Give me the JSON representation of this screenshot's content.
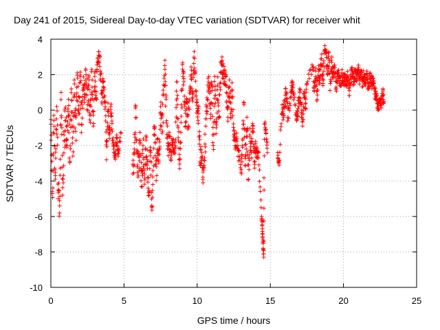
{
  "chart_data": {
    "type": "scatter",
    "title": "Day 241 of 2015, Sidereal Day-to-day VTEC variation (SDTVAR) for receiver whit",
    "xlabel": "GPS time / hours",
    "ylabel": "SDTVAR / TECUs",
    "xlim": [
      0,
      25
    ],
    "ylim": [
      -10,
      4
    ],
    "xticks": [
      0,
      5,
      10,
      15,
      20,
      25
    ],
    "yticks": [
      -10,
      -8,
      -6,
      -4,
      -2,
      0,
      2,
      4
    ],
    "grid": true,
    "marker": "+",
    "series_color": "#ff0000",
    "trace": [
      [
        0.0,
        -0.8
      ],
      [
        0.1,
        -4.6
      ],
      [
        0.2,
        -0.3
      ],
      [
        0.3,
        -3.9
      ],
      [
        0.4,
        0.2
      ],
      [
        0.5,
        -4.5
      ],
      [
        0.6,
        -5.4
      ],
      [
        0.7,
        1.0
      ],
      [
        0.8,
        -4.8
      ],
      [
        0.9,
        -1.4
      ],
      [
        1.0,
        -0.6
      ],
      [
        1.1,
        -2.0
      ],
      [
        1.2,
        0.6
      ],
      [
        1.3,
        -2.9
      ],
      [
        1.4,
        1.2
      ],
      [
        1.5,
        -2.6
      ],
      [
        1.6,
        1.7
      ],
      [
        1.7,
        -1.2
      ],
      [
        1.8,
        2.1
      ],
      [
        1.9,
        -0.2
      ],
      [
        2.0,
        1.9
      ],
      [
        2.1,
        -0.8
      ],
      [
        2.2,
        1.4
      ],
      [
        2.3,
        0.9
      ],
      [
        2.4,
        2.0
      ],
      [
        2.5,
        0.3
      ],
      [
        2.6,
        1.7
      ],
      [
        2.7,
        -0.7
      ],
      [
        2.8,
        2.3
      ],
      [
        2.9,
        -0.9
      ],
      [
        3.0,
        1.9
      ],
      [
        3.1,
        0.7
      ],
      [
        3.2,
        2.9
      ],
      [
        3.3,
        3.1
      ],
      [
        3.4,
        2.0
      ],
      [
        3.5,
        0.9
      ],
      [
        3.6,
        1.6
      ],
      [
        3.7,
        0.5
      ],
      [
        3.8,
        -2.8
      ],
      [
        3.9,
        0.4
      ],
      [
        4.0,
        -1.6
      ],
      [
        4.1,
        0.2
      ],
      [
        4.2,
        -1.2
      ],
      [
        4.3,
        -2.2
      ],
      [
        4.4,
        -2.6
      ],
      [
        4.5,
        -1.4
      ],
      [
        4.6,
        -2.6
      ],
      [
        4.8,
        -1.3
      ],
      [
        5.6,
        -3.6
      ],
      [
        5.7,
        -2.2
      ],
      [
        5.8,
        0.2
      ],
      [
        5.9,
        -3.2
      ],
      [
        6.0,
        -2.6
      ],
      [
        6.1,
        -1.9
      ],
      [
        6.2,
        -4.3
      ],
      [
        6.3,
        -2.0
      ],
      [
        6.4,
        -3.6
      ],
      [
        6.5,
        -1.7
      ],
      [
        6.6,
        -3.3
      ],
      [
        6.7,
        -4.8
      ],
      [
        6.8,
        -2.1
      ],
      [
        6.9,
        -5.5
      ],
      [
        7.0,
        -2.7
      ],
      [
        7.1,
        -1.0
      ],
      [
        7.2,
        -3.2
      ],
      [
        7.3,
        -1.6
      ],
      [
        7.4,
        -2.5
      ],
      [
        7.5,
        0.2
      ],
      [
        7.6,
        -1.3
      ],
      [
        7.7,
        0.9
      ],
      [
        7.8,
        2.3
      ],
      [
        7.9,
        -0.6
      ],
      [
        8.0,
        -2.0
      ],
      [
        8.1,
        -1.5
      ],
      [
        8.2,
        -2.7
      ],
      [
        8.3,
        -1.7
      ],
      [
        8.4,
        -2.4
      ],
      [
        8.5,
        -2.0
      ],
      [
        8.6,
        1.6
      ],
      [
        8.7,
        -1.0
      ],
      [
        8.8,
        -3.3
      ],
      [
        8.9,
        -0.7
      ],
      [
        9.0,
        2.3
      ],
      [
        9.1,
        1.6
      ],
      [
        9.2,
        -0.9
      ],
      [
        9.3,
        0.6
      ],
      [
        9.4,
        -1.0
      ],
      [
        9.5,
        1.1
      ],
      [
        9.6,
        2.0
      ],
      [
        9.7,
        0.5
      ],
      [
        9.8,
        3.3
      ],
      [
        9.9,
        1.1
      ],
      [
        10.0,
        0.1
      ],
      [
        10.1,
        -0.2
      ],
      [
        10.2,
        -3.1
      ],
      [
        10.3,
        -2.4
      ],
      [
        10.4,
        -4.1
      ],
      [
        10.5,
        -2.7
      ],
      [
        10.6,
        -0.5
      ],
      [
        10.7,
        0.6
      ],
      [
        10.8,
        1.9
      ],
      [
        10.9,
        0.1
      ],
      [
        11.0,
        1.4
      ],
      [
        11.1,
        -2.0
      ],
      [
        11.2,
        1.9
      ],
      [
        11.3,
        -1.0
      ],
      [
        11.4,
        1.4
      ],
      [
        11.5,
        -0.4
      ],
      [
        11.6,
        2.1
      ],
      [
        11.7,
        2.8
      ],
      [
        11.8,
        1.5
      ],
      [
        11.9,
        2.2
      ],
      [
        12.0,
        1.0
      ],
      [
        12.1,
        -0.4
      ],
      [
        12.2,
        1.7
      ],
      [
        12.3,
        -0.4
      ],
      [
        12.4,
        1.1
      ],
      [
        12.5,
        -1.4
      ],
      [
        12.6,
        -2.0
      ],
      [
        12.7,
        -1.6
      ],
      [
        12.8,
        -2.3
      ],
      [
        13.0,
        -3.5
      ],
      [
        13.1,
        -2.1
      ],
      [
        13.2,
        0.4
      ],
      [
        13.3,
        -3.1
      ],
      [
        13.4,
        -0.4
      ],
      [
        13.5,
        -3.9
      ],
      [
        13.6,
        -1.4
      ],
      [
        13.7,
        -2.4
      ],
      [
        13.8,
        -0.9
      ],
      [
        13.9,
        -2.9
      ],
      [
        14.0,
        -1.9
      ],
      [
        14.1,
        -2.7
      ],
      [
        14.2,
        -2.4
      ],
      [
        14.4,
        -6.0
      ],
      [
        14.45,
        -6.7
      ],
      [
        14.5,
        -7.5
      ],
      [
        14.55,
        -8.3
      ],
      [
        14.6,
        -0.8
      ],
      [
        14.7,
        -1.1
      ],
      [
        14.8,
        -2.4
      ],
      [
        15.5,
        -2.4
      ],
      [
        15.6,
        -3.1
      ],
      [
        15.8,
        0.3
      ],
      [
        15.9,
        -0.4
      ],
      [
        16.0,
        0.6
      ],
      [
        16.1,
        0.9
      ],
      [
        16.2,
        -0.4
      ],
      [
        16.4,
        1.0
      ],
      [
        16.5,
        1.3
      ],
      [
        16.6,
        0.9
      ],
      [
        16.8,
        -0.6
      ],
      [
        16.9,
        0.1
      ],
      [
        17.0,
        1.2
      ],
      [
        17.1,
        0.3
      ],
      [
        17.2,
        -0.9
      ],
      [
        17.3,
        0.9
      ],
      [
        17.4,
        0.1
      ],
      [
        17.5,
        1.5
      ],
      [
        17.9,
        2.4
      ],
      [
        18.0,
        1.1
      ],
      [
        18.1,
        2.2
      ],
      [
        18.2,
        0.6
      ],
      [
        18.3,
        2.5
      ],
      [
        18.4,
        1.8
      ],
      [
        18.5,
        2.9
      ],
      [
        18.6,
        1.5
      ],
      [
        18.7,
        3.2
      ],
      [
        18.8,
        3.4
      ],
      [
        18.9,
        2.0
      ],
      [
        19.0,
        2.9
      ],
      [
        19.1,
        1.5
      ],
      [
        19.2,
        2.7
      ],
      [
        19.3,
        1.8
      ],
      [
        19.4,
        2.4
      ],
      [
        19.5,
        1.3
      ],
      [
        19.6,
        2.2
      ],
      [
        19.7,
        1.9
      ],
      [
        19.8,
        1.4
      ],
      [
        19.9,
        2.1
      ],
      [
        20.0,
        1.6
      ],
      [
        20.1,
        2.0
      ],
      [
        20.2,
        1.4
      ],
      [
        20.3,
        1.9
      ],
      [
        20.4,
        1.1
      ],
      [
        20.5,
        1.8
      ],
      [
        20.6,
        2.1
      ],
      [
        20.7,
        1.6
      ],
      [
        20.8,
        2.2
      ],
      [
        20.9,
        1.8
      ],
      [
        21.0,
        2.3
      ],
      [
        21.1,
        1.8
      ],
      [
        21.2,
        2.2
      ],
      [
        21.3,
        1.6
      ],
      [
        21.4,
        2.0
      ],
      [
        21.5,
        1.4
      ],
      [
        21.6,
        2.2
      ],
      [
        21.7,
        1.2
      ],
      [
        21.8,
        1.9
      ],
      [
        21.9,
        1.5
      ],
      [
        22.0,
        1.8
      ],
      [
        22.1,
        1.2
      ],
      [
        22.2,
        0.9
      ],
      [
        22.3,
        0.4
      ],
      [
        22.4,
        0.1
      ],
      [
        22.5,
        0.6
      ],
      [
        22.6,
        0.3
      ],
      [
        22.7,
        1.2
      ],
      [
        22.75,
        0.5
      ]
    ],
    "spread": [
      2.2,
      2.0,
      1.0,
      1.8,
      2.0,
      2.4,
      1.6,
      1.2,
      1.4,
      2.0,
      2.2,
      1.6,
      1.8,
      2.0,
      2.2,
      1.8,
      1.6,
      2.0,
      1.4,
      1.8,
      2.0,
      1.6,
      2.2,
      1.4,
      1.6,
      2.0,
      1.2,
      1.8,
      1.6,
      2.0,
      1.4,
      1.8,
      1.0,
      0.8,
      1.4,
      1.6,
      1.2,
      1.4,
      0.8,
      1.0,
      0.8,
      1.0,
      0.8,
      0.6,
      0.6,
      0.6,
      0.6,
      0.4,
      1.6,
      1.8,
      1.2,
      1.8,
      2.2,
      2.0,
      1.8,
      2.0,
      2.2,
      1.8,
      2.0,
      1.6,
      2.2,
      1.4,
      2.0,
      1.8,
      2.2,
      2.0,
      2.4,
      1.6,
      2.0,
      1.8,
      1.4,
      1.8,
      1.6,
      1.4,
      1.2,
      1.4,
      1.2,
      1.4,
      1.6,
      1.4,
      1.2,
      1.4,
      1.6,
      1.4,
      1.6,
      1.8,
      1.6,
      1.2,
      1.4,
      1.2,
      0.8,
      1.0,
      1.6,
      1.8,
      1.4,
      1.6,
      1.0,
      1.4,
      1.8,
      1.6,
      1.4,
      1.6,
      1.8,
      1.6,
      1.4,
      1.6,
      1.4,
      1.6,
      1.2,
      1.0,
      1.4,
      1.2,
      1.4,
      1.6,
      1.4,
      1.6,
      1.4,
      1.2,
      1.0,
      0.8,
      0.8,
      1.2,
      1.4,
      1.2,
      1.4,
      1.6,
      1.2,
      1.4,
      1.2,
      1.0,
      1.2,
      1.0,
      1.0,
      0.8,
      0.3,
      0.3,
      0.3,
      0.3,
      0.6,
      0.6,
      0.6,
      0.4,
      0.4,
      1.0,
      1.0,
      1.2,
      1.0,
      1.0,
      0.8,
      1.0,
      0.8,
      0.6,
      0.8,
      1.0,
      0.8,
      0.6,
      0.8,
      0.6,
      0.6,
      0.8,
      1.0,
      1.0,
      0.8,
      1.0,
      1.2,
      1.0,
      1.2,
      0.8,
      0.6,
      1.2,
      1.0,
      1.2,
      1.0,
      1.2,
      1.0,
      0.8,
      1.0,
      0.8,
      0.8,
      0.8,
      0.8,
      0.8,
      0.8,
      0.8,
      0.8,
      0.8,
      0.8,
      0.8,
      0.6,
      0.8,
      0.6,
      0.8,
      0.6,
      0.8,
      0.8,
      0.8,
      0.8,
      0.8,
      0.8,
      1.0,
      0.8,
      1.0,
      0.8,
      0.8,
      0.6,
      0.6,
      0.6,
      0.8,
      0.6
    ]
  }
}
